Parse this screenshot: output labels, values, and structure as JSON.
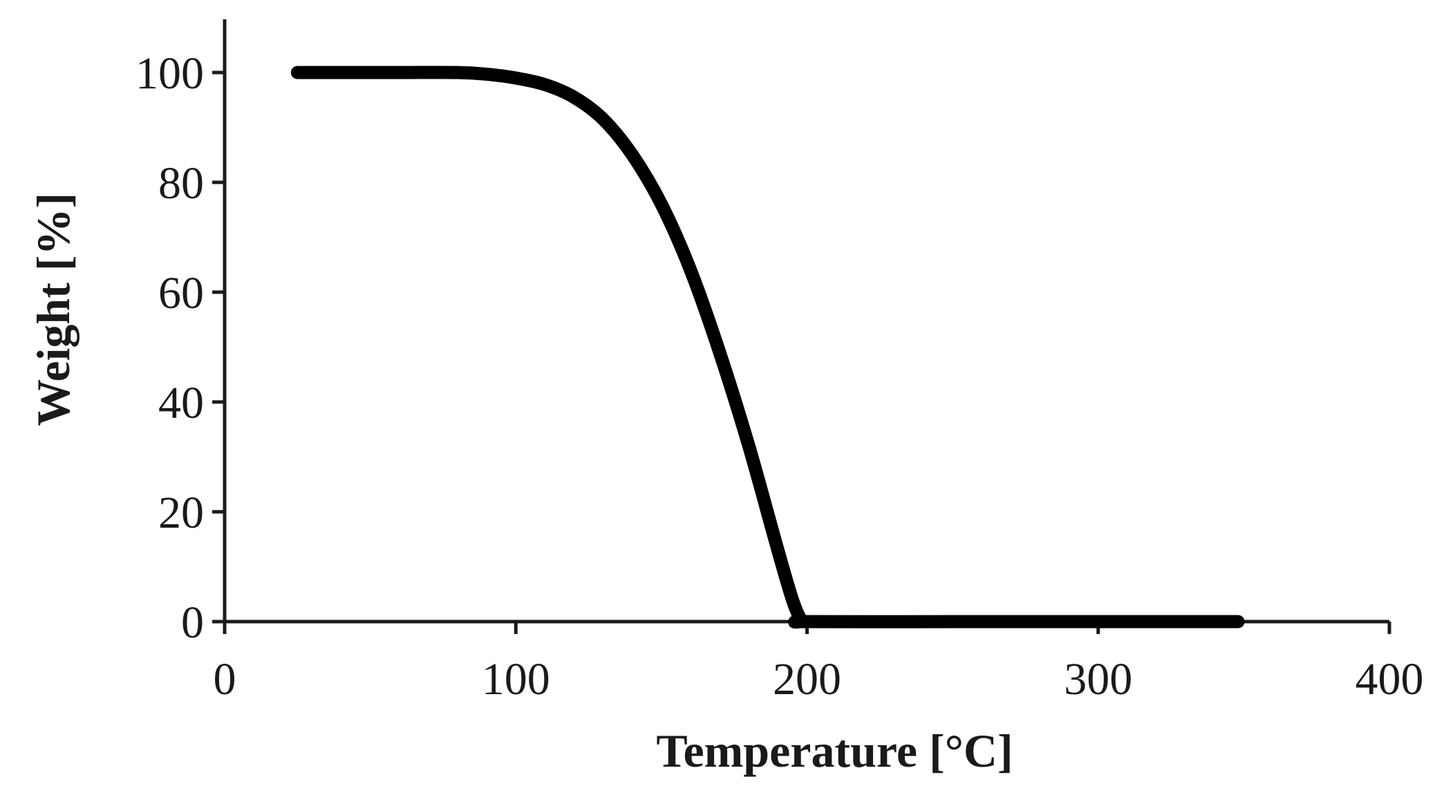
{
  "chart_data": {
    "type": "line",
    "xlabel": "Temperature [°C]",
    "ylabel": "Weight [%]",
    "xlim": [
      0,
      400
    ],
    "ylim": [
      0,
      100
    ],
    "xticks": [
      0,
      100,
      200,
      300,
      400
    ],
    "yticks": [
      0,
      20,
      40,
      60,
      80,
      100
    ],
    "grid": false,
    "line_color": "#000000",
    "series": [
      {
        "x": [
          25,
          40,
          60,
          80,
          90,
          100,
          110,
          120,
          130,
          140,
          150,
          160,
          170,
          180,
          190,
          195,
          198,
          200,
          250,
          300,
          348
        ],
        "values": [
          100,
          100,
          100,
          100,
          99.7,
          99,
          97.8,
          95.5,
          91.5,
          85,
          76,
          64,
          49,
          32,
          13,
          4,
          0.3,
          0,
          0,
          0,
          0
        ]
      }
    ]
  }
}
